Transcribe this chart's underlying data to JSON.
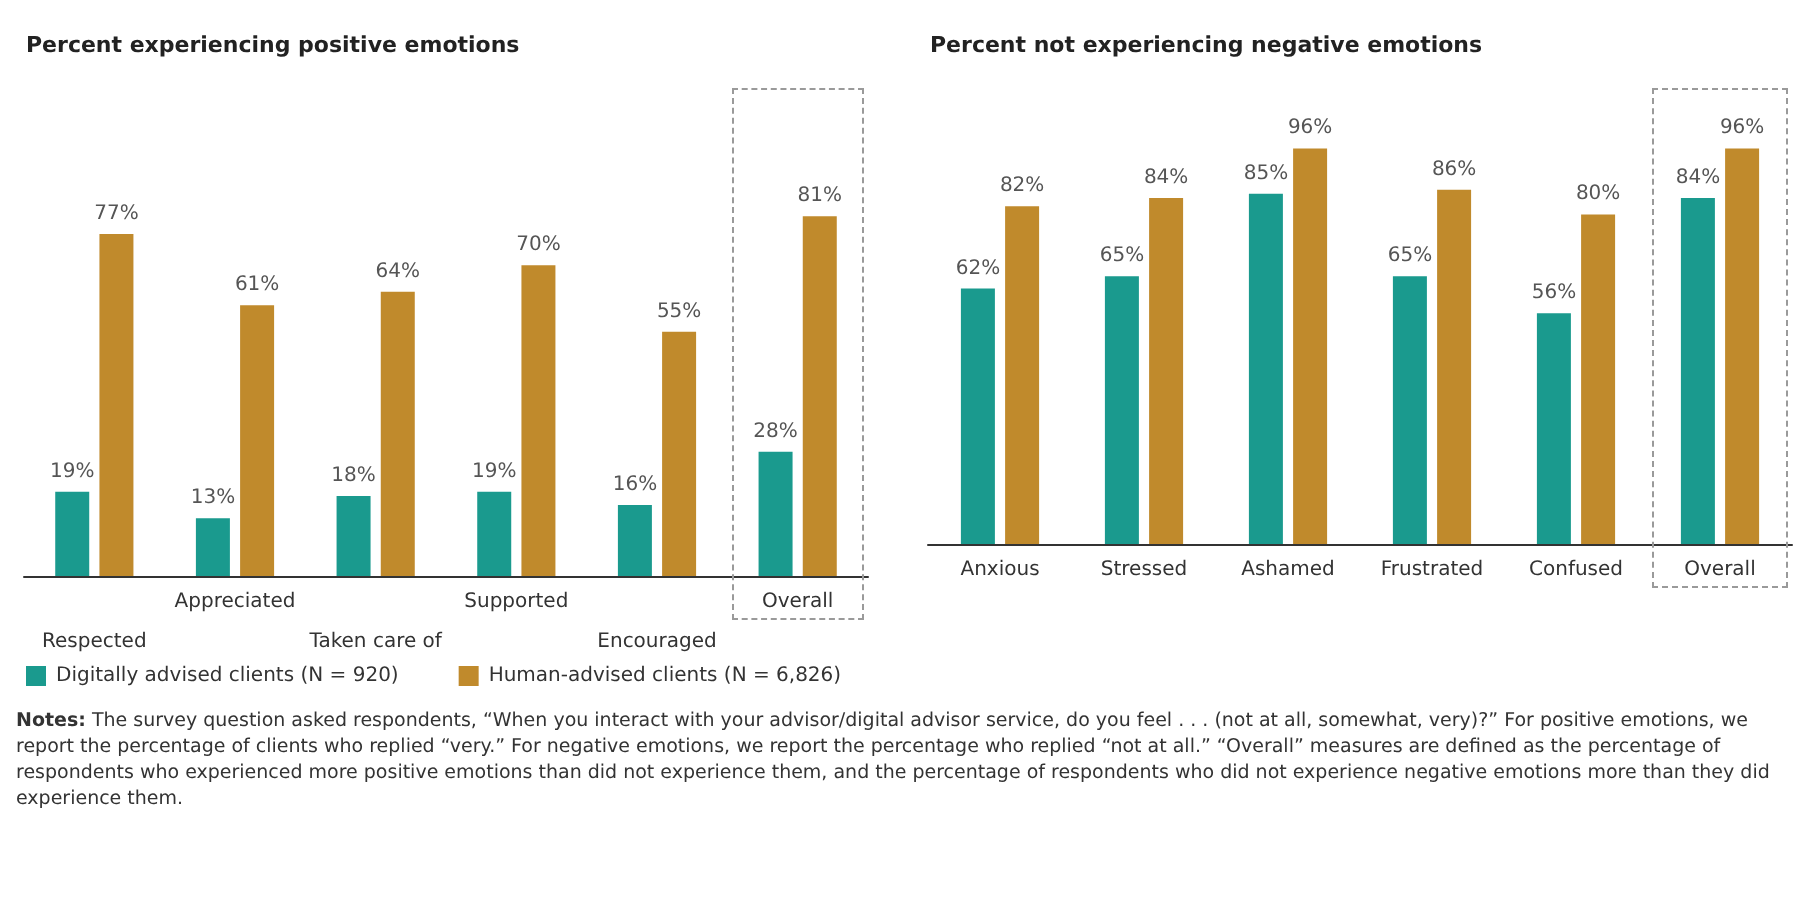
{
  "chart_data": [
    {
      "type": "bar",
      "title": "Percent experiencing positive emotions",
      "categories": [
        "Respected",
        "Appreciated",
        "Taken care of",
        "Supported",
        "Encouraged",
        "Overall"
      ],
      "series": [
        {
          "name": "Digitally advised clients (N = 920)",
          "color": "#1a9a8e",
          "values": [
            19,
            13,
            18,
            19,
            16,
            28
          ],
          "value_labels": [
            "19%",
            "13%",
            "18%",
            "19%",
            "16%",
            "28%"
          ]
        },
        {
          "name": "Human-advised clients (N = 6,826)",
          "color": "#c08a2c",
          "values": [
            77,
            61,
            64,
            70,
            55,
            81
          ],
          "value_labels": [
            "77%",
            "61%",
            "64%",
            "70%",
            "55%",
            "81%"
          ]
        }
      ],
      "tick_labels": "x",
      "legend": "bottom",
      "annotations": [
        "Notes: The survey question asked respondents, “When you interact with your advisor/digital advisor service, do you feel . . . (not at all, somewhat, very)?” For positive emotions, we report the percentage of clients who replied “very.” For negative emotions, we report the percentage who replied “not at all.” “Overall” measures are defined as the percentage of respondents who experienced more positive emotions than did not experience them, and the percentage of respondents who did not experience negative emotions more than they did experience them."
      ]
    },
    {
      "type": "bar",
      "title": "Percent not experiencing negative emotions",
      "categories": [
        "Anxious",
        "Stressed",
        "Ashamed",
        "Frustrated",
        "Confused",
        "Overall"
      ],
      "series": [
        {
          "color": "#1a9a8e",
          "values": [
            62,
            65,
            85,
            65,
            56,
            84
          ],
          "value_labels": [
            "62%",
            "65%",
            "85%",
            "65%",
            "56%",
            "84%"
          ]
        },
        {
          "color": "#c08a2c",
          "values": [
            82,
            84,
            96,
            86,
            80,
            96
          ],
          "value_labels": [
            "82%",
            "84%",
            "96%",
            "86%",
            "80%",
            "96%"
          ]
        }
      ],
      "tick_labels": "x",
      "legend": false
    }
  ]
}
